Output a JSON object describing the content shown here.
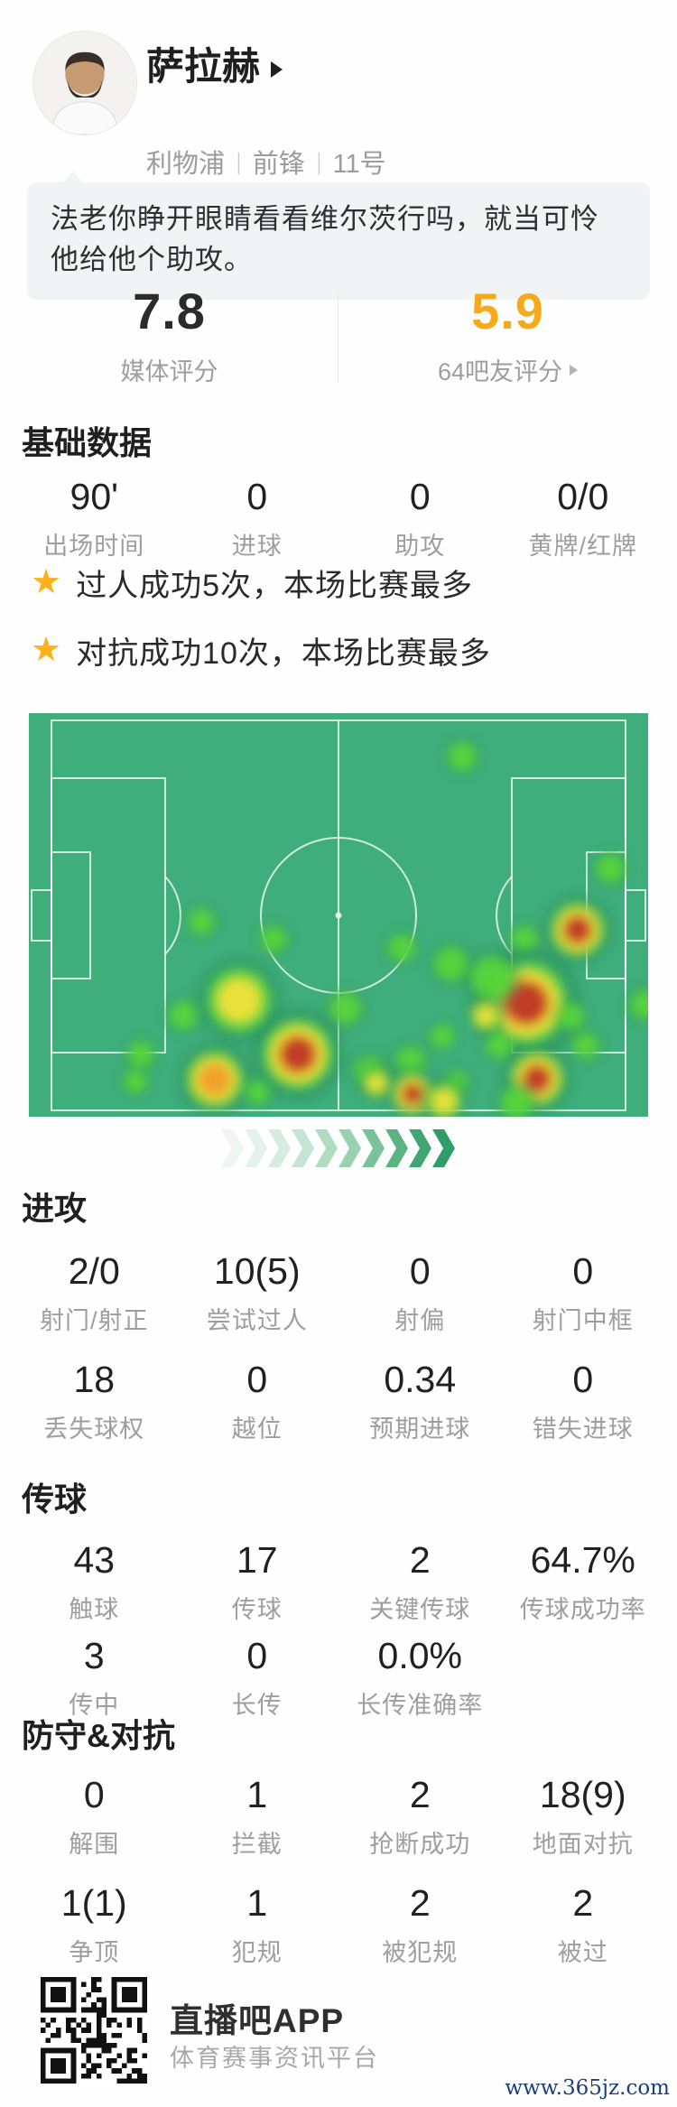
{
  "colors": {
    "accent_yellow": "#f5a91d",
    "star": "#ffb11b",
    "pitch_green": "#3fae7c",
    "heat_levels": {
      "halo": "#1f8a55",
      "green": "#57d63a",
      "yellow": "#f2e13a",
      "orange": "#f09c2a",
      "red": "#c03a28"
    },
    "chevrons": [
      "#edf6f1",
      "#e3f2ea",
      "#d6ecdf",
      "#c5e5d2",
      "#b0dcc2",
      "#97d1af",
      "#7ac39a",
      "#5cb485",
      "#41a672",
      "#2f9d68"
    ],
    "watermark_blue": "#1c3e7a"
  },
  "header": {
    "name": "萨拉赫",
    "team": "利物浦",
    "separator": "|",
    "position": "前锋",
    "number": "11号"
  },
  "comment": "法老你睁开眼睛看看维尔茨行吗，就当可怜他给他个助攻。",
  "ratings": {
    "media_value": "7.8",
    "media_label": "媒体评分",
    "fans_value": "5.9",
    "fans_label": "64吧友评分"
  },
  "highlights": [
    "过人成功5次，本场比赛最多",
    "对抗成功10次，本场比赛最多"
  ],
  "basic": {
    "title": "基础数据",
    "rows": [
      [
        {
          "value": "90'",
          "label": "出场时间"
        },
        {
          "value": "0",
          "label": "进球"
        },
        {
          "value": "0",
          "label": "助攻"
        },
        {
          "value": "0/0",
          "label": "黄牌/红牌"
        }
      ]
    ]
  },
  "attack": {
    "title": "进攻",
    "rows": [
      [
        {
          "value": "2/0",
          "label": "射门/射正"
        },
        {
          "value": "10(5)",
          "label": "尝试过人"
        },
        {
          "value": "0",
          "label": "射偏"
        },
        {
          "value": "0",
          "label": "射门中框"
        }
      ],
      [
        {
          "value": "18",
          "label": "丢失球权"
        },
        {
          "value": "0",
          "label": "越位"
        },
        {
          "value": "0.34",
          "label": "预期进球"
        },
        {
          "value": "0",
          "label": "错失进球"
        }
      ]
    ]
  },
  "passing": {
    "title": "传球",
    "rows": [
      [
        {
          "value": "43",
          "label": "触球"
        },
        {
          "value": "17",
          "label": "传球"
        },
        {
          "value": "2",
          "label": "关键传球"
        },
        {
          "value": "64.7%",
          "label": "传球成功率"
        }
      ],
      [
        {
          "value": "3",
          "label": "传中"
        },
        {
          "value": "0",
          "label": "长传"
        },
        {
          "value": "0.0%",
          "label": "长传准确率"
        },
        null
      ]
    ]
  },
  "defense": {
    "title": "防守&对抗",
    "rows": [
      [
        {
          "value": "0",
          "label": "解围"
        },
        {
          "value": "1",
          "label": "拦截"
        },
        {
          "value": "2",
          "label": "抢断成功"
        },
        {
          "value": "18(9)",
          "label": "地面对抗"
        }
      ],
      [
        {
          "value": "1(1)",
          "label": "争顶"
        },
        {
          "value": "1",
          "label": "犯规"
        },
        {
          "value": "2",
          "label": "被犯规"
        },
        {
          "value": "2",
          "label": "被过"
        }
      ]
    ]
  },
  "heatmap": {
    "description": "player position heat map on horizontal football pitch",
    "spots": [
      [
        480,
        48,
        22,
        1
      ],
      [
        644,
        172,
        22,
        1
      ],
      [
        608,
        240,
        40,
        4
      ],
      [
        549,
        250,
        20,
        1
      ],
      [
        413,
        260,
        21,
        1
      ],
      [
        191,
        231,
        20,
        1
      ],
      [
        271,
        250,
        20,
        1
      ],
      [
        233,
        318,
        48,
        2
      ],
      [
        171,
        335,
        22,
        1
      ],
      [
        351,
        327,
        24,
        1
      ],
      [
        124,
        378,
        20,
        1
      ],
      [
        298,
        378,
        52,
        4
      ],
      [
        206,
        406,
        42,
        3
      ],
      [
        253,
        420,
        18,
        1
      ],
      [
        118,
        408,
        18,
        1
      ],
      [
        458,
        358,
        18,
        1
      ],
      [
        423,
        385,
        22,
        1
      ],
      [
        378,
        398,
        24,
        1
      ],
      [
        385,
        410,
        20,
        2
      ],
      [
        425,
        422,
        30,
        4
      ],
      [
        473,
        410,
        18,
        1
      ],
      [
        551,
        321,
        62,
        4
      ],
      [
        506,
        335,
        22,
        2
      ],
      [
        601,
        336,
        20,
        1
      ],
      [
        617,
        368,
        20,
        1
      ],
      [
        563,
        405,
        40,
        4
      ],
      [
        468,
        278,
        26,
        1
      ],
      [
        513,
        293,
        32,
        1
      ],
      [
        682,
        323,
        22,
        1
      ],
      [
        521,
        368,
        20,
        1
      ],
      [
        460,
        430,
        26,
        2
      ],
      [
        540,
        432,
        24,
        1
      ]
    ]
  },
  "footer": {
    "app_name": "直播吧APP",
    "tagline": "体育赛事资讯平台",
    "watermark": "www.365jz.com"
  }
}
